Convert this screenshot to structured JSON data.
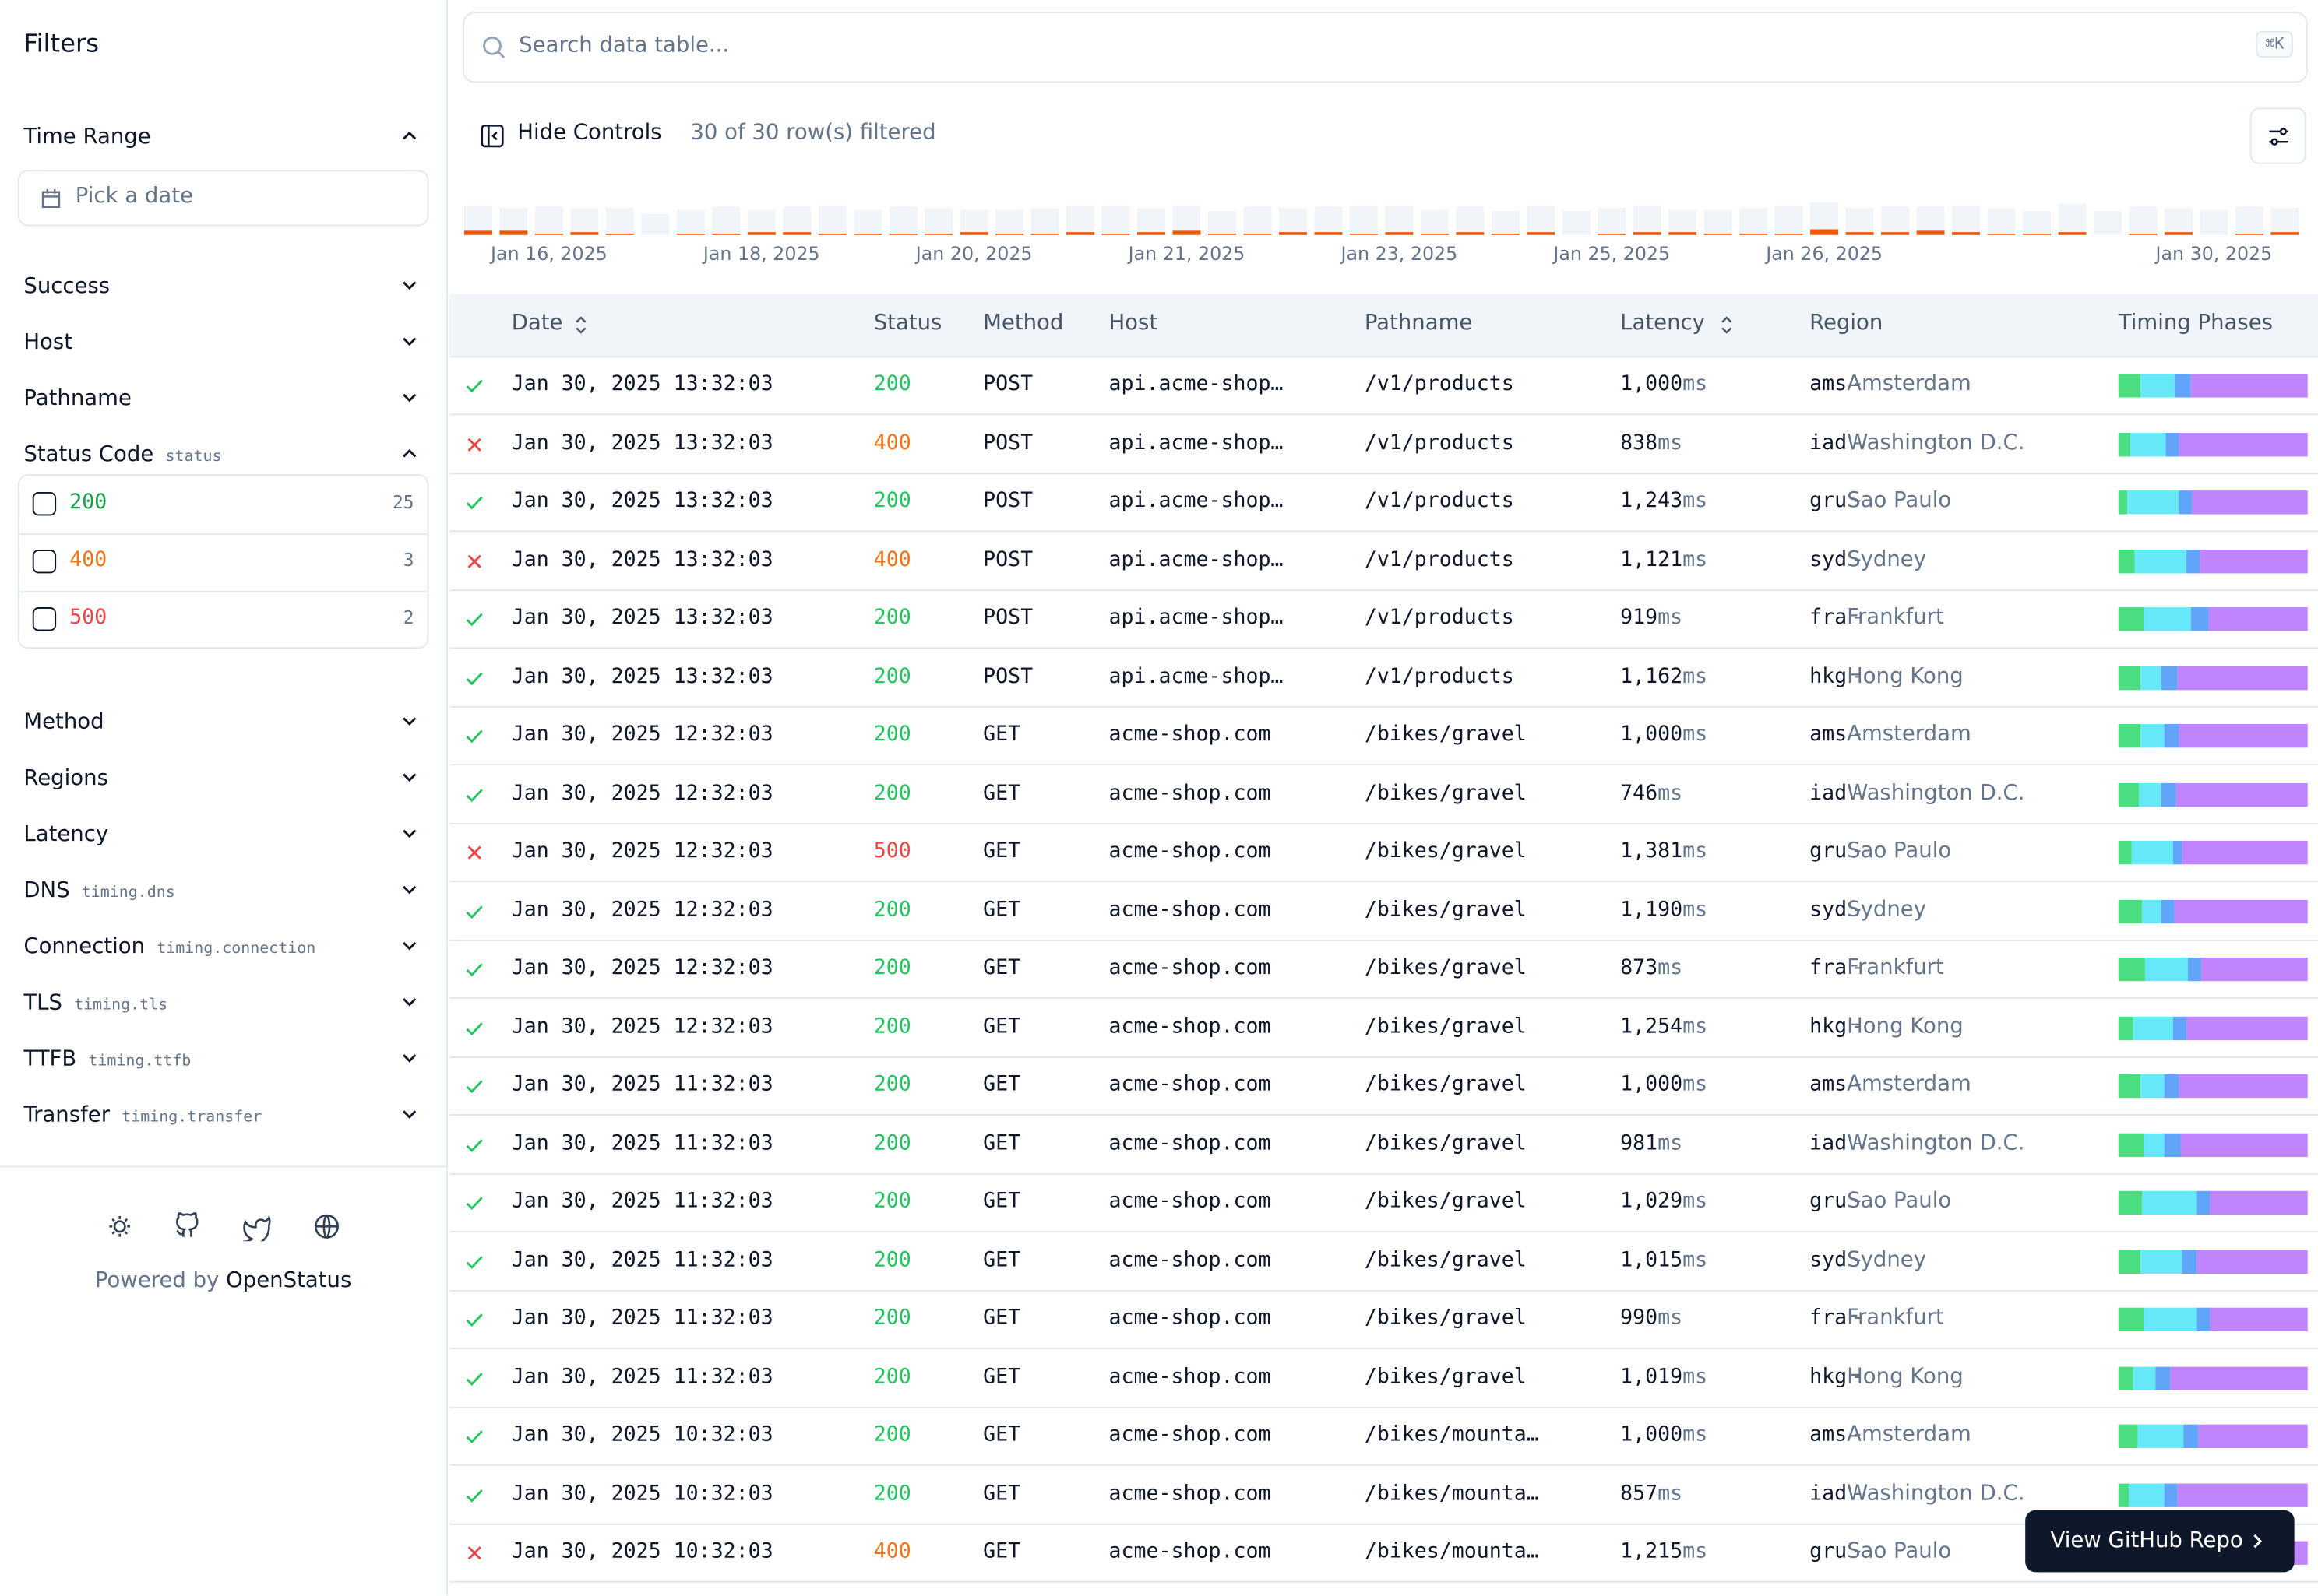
{
  "sidebar": {
    "title": "Filters",
    "filters": [
      {
        "label": "Time Range",
        "expanded": true,
        "placeholder": "Pick a date"
      },
      {
        "label": "Success",
        "expanded": false
      },
      {
        "label": "Host",
        "expanded": false
      },
      {
        "label": "Pathname",
        "expanded": false
      },
      {
        "label": "Status Code",
        "tag": "status",
        "expanded": true,
        "options": [
          {
            "label": "200",
            "count": "25",
            "color": "#16a34a"
          },
          {
            "label": "400",
            "count": "3",
            "color": "#f97316"
          },
          {
            "label": "500",
            "count": "2",
            "color": "#ef4444"
          }
        ]
      },
      {
        "label": "Method",
        "expanded": false
      },
      {
        "label": "Regions",
        "expanded": false
      },
      {
        "label": "Latency",
        "expanded": false
      },
      {
        "label": "DNS",
        "tag": "timing.dns",
        "expanded": false
      },
      {
        "label": "Connection",
        "tag": "timing.connection",
        "expanded": false
      },
      {
        "label": "TLS",
        "tag": "timing.tls",
        "expanded": false
      },
      {
        "label": "TTFB",
        "tag": "timing.ttfb",
        "expanded": false
      },
      {
        "label": "Transfer",
        "tag": "timing.transfer",
        "expanded": false
      }
    ],
    "powered_by": "Powered by",
    "brand": "OpenStatus"
  },
  "toolbar": {
    "search_placeholder": "Search data table...",
    "shortcut": "⌘K",
    "hide_controls": "Hide Controls",
    "row_count": "30 of 30 row(s) filtered"
  },
  "timeline": {
    "categories": [
      null,
      null,
      "Jan 16, 2025",
      null,
      null,
      null,
      null,
      null,
      "Jan 18, 2025",
      null,
      null,
      null,
      null,
      null,
      "Jan 20, 2025",
      null,
      null,
      null,
      null,
      null,
      "Jan 21, 2025",
      null,
      null,
      null,
      null,
      null,
      "Jan 23, 2025",
      null,
      null,
      null,
      null,
      null,
      "Jan 25, 2025",
      null,
      null,
      null,
      null,
      null,
      "Jan 26, 2025",
      null,
      null,
      null,
      null,
      null,
      null,
      null,
      null,
      null,
      null,
      "Jan 30, 2025",
      null,
      null
    ],
    "success_counts": [
      18,
      16,
      19,
      17,
      18,
      15,
      17,
      19,
      16,
      18,
      20,
      17,
      19,
      18,
      16,
      17,
      18,
      19,
      20,
      17,
      18,
      16,
      19,
      17,
      18,
      20,
      19,
      17,
      18,
      16,
      19,
      17,
      18,
      19,
      16,
      17,
      18,
      20,
      19,
      17,
      18,
      17,
      19,
      18,
      16,
      20,
      17,
      19,
      17,
      18,
      19,
      17
    ],
    "error_counts": [
      3,
      3,
      1,
      2,
      1,
      0,
      1,
      1,
      2,
      2,
      1,
      1,
      1,
      1,
      2,
      1,
      1,
      2,
      1,
      2,
      3,
      1,
      1,
      2,
      2,
      1,
      2,
      1,
      2,
      1,
      2,
      0,
      1,
      2,
      2,
      1,
      1,
      1,
      4,
      2,
      2,
      3,
      2,
      1,
      1,
      2,
      0,
      1,
      2,
      0,
      1,
      2
    ],
    "success_color": "#f1f5f9",
    "error_color": "#ea580c"
  },
  "table": {
    "headers": [
      "Date",
      "Status",
      "Method",
      "Host",
      "Pathname",
      "Latency",
      "Region",
      "Timing Phases"
    ],
    "latency_unit": "ms",
    "region_separator": " - ",
    "status_colors": {
      "200": "#22c55e",
      "400": "#f97316",
      "500": "#ef4444"
    },
    "timing_colors": [
      "#4ade80",
      "#67e8f9",
      "#60a5fa",
      "#c084fc"
    ],
    "rows": [
      {
        "success": true,
        "date": "Jan 30, 2025 13:32:03",
        "status": "200",
        "method": "POST",
        "host": "api.acme-shop…",
        "pathname": "/v1/products",
        "latency": "1,000",
        "region": "ams",
        "region_name": "Amsterdam",
        "timing": [
          120,
          180,
          80,
          620
        ]
      },
      {
        "success": false,
        "date": "Jan 30, 2025 13:32:03",
        "status": "400",
        "method": "POST",
        "host": "api.acme-shop…",
        "pathname": "/v1/products",
        "latency": "838",
        "region": "iad",
        "region_name": "Washington D.C.",
        "timing": [
          50,
          160,
          60,
          568
        ]
      },
      {
        "success": true,
        "date": "Jan 30, 2025 13:32:03",
        "status": "200",
        "method": "POST",
        "host": "api.acme-shop…",
        "pathname": "/v1/products",
        "latency": "1,243",
        "region": "gru",
        "region_name": "Sao Paulo",
        "timing": [
          60,
          340,
          90,
          753
        ]
      },
      {
        "success": false,
        "date": "Jan 30, 2025 13:32:03",
        "status": "400",
        "method": "POST",
        "host": "api.acme-shop…",
        "pathname": "/v1/products",
        "latency": "1,121",
        "region": "syd",
        "region_name": "Sydney",
        "timing": [
          100,
          300,
          80,
          641
        ]
      },
      {
        "success": true,
        "date": "Jan 30, 2025 13:32:03",
        "status": "200",
        "method": "POST",
        "host": "api.acme-shop…",
        "pathname": "/v1/products",
        "latency": "919",
        "region": "fra",
        "region_name": "Frankfurt",
        "timing": [
          120,
          230,
          90,
          479
        ]
      },
      {
        "success": true,
        "date": "Jan 30, 2025 13:32:03",
        "status": "200",
        "method": "POST",
        "host": "api.acme-shop…",
        "pathname": "/v1/products",
        "latency": "1,162",
        "region": "hkg",
        "region_name": "Hong Kong",
        "timing": [
          140,
          120,
          100,
          802
        ]
      },
      {
        "success": true,
        "date": "Jan 30, 2025 12:32:03",
        "status": "200",
        "method": "GET",
        "host": "acme-shop.com",
        "pathname": "/bikes/gravel",
        "latency": "1,000",
        "region": "ams",
        "region_name": "Amsterdam",
        "timing": [
          120,
          120,
          80,
          680
        ]
      },
      {
        "success": true,
        "date": "Jan 30, 2025 12:32:03",
        "status": "200",
        "method": "GET",
        "host": "acme-shop.com",
        "pathname": "/bikes/gravel",
        "latency": "746",
        "region": "iad",
        "region_name": "Washington D.C.",
        "timing": [
          80,
          90,
          60,
          516
        ]
      },
      {
        "success": false,
        "date": "Jan 30, 2025 12:32:03",
        "status": "500",
        "method": "GET",
        "host": "acme-shop.com",
        "pathname": "/bikes/gravel",
        "latency": "1,381",
        "region": "gru",
        "region_name": "Sao Paulo",
        "timing": [
          100,
          300,
          60,
          921
        ]
      },
      {
        "success": true,
        "date": "Jan 30, 2025 12:32:03",
        "status": "200",
        "method": "GET",
        "host": "acme-shop.com",
        "pathname": "/bikes/gravel",
        "latency": "1,190",
        "region": "syd",
        "region_name": "Sydney",
        "timing": [
          150,
          120,
          80,
          840
        ]
      },
      {
        "success": true,
        "date": "Jan 30, 2025 12:32:03",
        "status": "200",
        "method": "GET",
        "host": "acme-shop.com",
        "pathname": "/bikes/gravel",
        "latency": "873",
        "region": "fra",
        "region_name": "Frankfurt",
        "timing": [
          120,
          200,
          60,
          493
        ]
      },
      {
        "success": true,
        "date": "Jan 30, 2025 12:32:03",
        "status": "200",
        "method": "GET",
        "host": "acme-shop.com",
        "pathname": "/bikes/gravel",
        "latency": "1,254",
        "region": "hkg",
        "region_name": "Hong Kong",
        "timing": [
          100,
          260,
          90,
          804
        ]
      },
      {
        "success": true,
        "date": "Jan 30, 2025 11:32:03",
        "status": "200",
        "method": "GET",
        "host": "acme-shop.com",
        "pathname": "/bikes/gravel",
        "latency": "1,000",
        "region": "ams",
        "region_name": "Amsterdam",
        "timing": [
          120,
          120,
          80,
          680
        ]
      },
      {
        "success": true,
        "date": "Jan 30, 2025 11:32:03",
        "status": "200",
        "method": "GET",
        "host": "acme-shop.com",
        "pathname": "/bikes/gravel",
        "latency": "981",
        "region": "iad",
        "region_name": "Washington D.C.",
        "timing": [
          130,
          110,
          80,
          661
        ]
      },
      {
        "success": true,
        "date": "Jan 30, 2025 11:32:03",
        "status": "200",
        "method": "GET",
        "host": "acme-shop.com",
        "pathname": "/bikes/gravel",
        "latency": "1,029",
        "region": "gru",
        "region_name": "Sao Paulo",
        "timing": [
          130,
          300,
          70,
          529
        ]
      },
      {
        "success": true,
        "date": "Jan 30, 2025 11:32:03",
        "status": "200",
        "method": "GET",
        "host": "acme-shop.com",
        "pathname": "/bikes/gravel",
        "latency": "1,015",
        "region": "syd",
        "region_name": "Sydney",
        "timing": [
          120,
          220,
          80,
          595
        ]
      },
      {
        "success": true,
        "date": "Jan 30, 2025 11:32:03",
        "status": "200",
        "method": "GET",
        "host": "acme-shop.com",
        "pathname": "/bikes/gravel",
        "latency": "990",
        "region": "fra",
        "region_name": "Frankfurt",
        "timing": [
          130,
          280,
          70,
          510
        ]
      },
      {
        "success": true,
        "date": "Jan 30, 2025 11:32:03",
        "status": "200",
        "method": "GET",
        "host": "acme-shop.com",
        "pathname": "/bikes/gravel",
        "latency": "1,019",
        "region": "hkg",
        "region_name": "Hong Kong",
        "timing": [
          80,
          120,
          80,
          739
        ]
      },
      {
        "success": true,
        "date": "Jan 30, 2025 10:32:03",
        "status": "200",
        "method": "GET",
        "host": "acme-shop.com",
        "pathname": "/bikes/mounta…",
        "latency": "1,000",
        "region": "ams",
        "region_name": "Amsterdam",
        "timing": [
          100,
          240,
          80,
          580
        ]
      },
      {
        "success": true,
        "date": "Jan 30, 2025 10:32:03",
        "status": "200",
        "method": "GET",
        "host": "acme-shop.com",
        "pathname": "/bikes/mounta…",
        "latency": "857",
        "region": "iad",
        "region_name": "Washington D.C.",
        "timing": [
          50,
          160,
          60,
          587
        ]
      },
      {
        "success": false,
        "date": "Jan 30, 2025 10:32:03",
        "status": "400",
        "method": "GET",
        "host": "acme-shop.com",
        "pathname": "/bikes/mounta…",
        "latency": "1,215",
        "region": "gru",
        "region_name": "Sao Paulo",
        "timing": [
          80,
          300,
          80,
          755
        ]
      }
    ]
  },
  "cta": "View GitHub Repo"
}
